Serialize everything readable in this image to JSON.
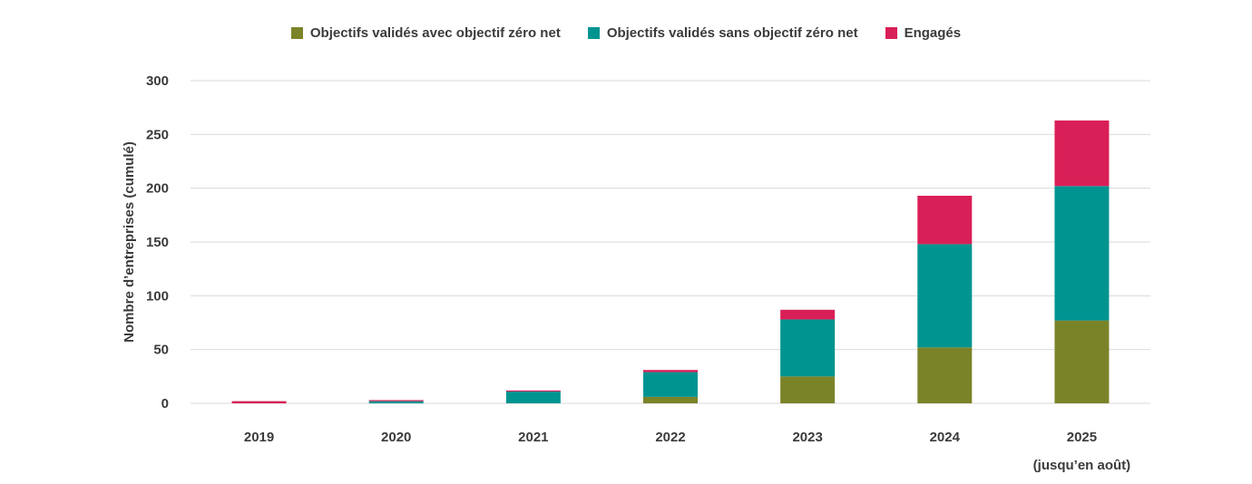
{
  "chart_data": {
    "type": "bar",
    "stacked": true,
    "categories": [
      "2019",
      "2020",
      "2021",
      "2022",
      "2023",
      "2024",
      "2025"
    ],
    "category_sublabels": [
      "",
      "",
      "",
      "",
      "",
      "",
      "(jusqu’en août)"
    ],
    "series": [
      {
        "name": "Objectifs validés avec objectif zéro net",
        "color": "#7b8329",
        "values": [
          0,
          0,
          0,
          6,
          25,
          52,
          77
        ]
      },
      {
        "name": "Objectifs validés sans objectif zéro net",
        "color": "#009490",
        "values": [
          0,
          2,
          11,
          23,
          53,
          96,
          125
        ]
      },
      {
        "name": "Engagés",
        "color": "#d91f57",
        "values": [
          2,
          1,
          1,
          2,
          9,
          45,
          61
        ]
      }
    ],
    "ylabel": "Nombre d’entreprises (cumulé)",
    "xlabel": "",
    "ylim": [
      0,
      300
    ],
    "yticks": [
      0,
      50,
      100,
      150,
      200,
      250,
      300
    ],
    "grid": true,
    "legend_position": "top-center"
  }
}
